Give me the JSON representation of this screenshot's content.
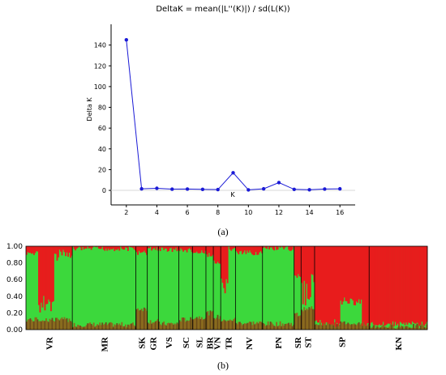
{
  "chart_data": [
    {
      "type": "line",
      "title": "DeltaK = mean(|L''(K)|) / sd(L(K))",
      "xlabel": "K",
      "ylabel": "Delta K",
      "x": [
        2,
        3,
        4,
        5,
        6,
        7,
        8,
        9,
        10,
        11,
        12,
        13,
        14,
        15,
        16
      ],
      "values": [
        145,
        1.5,
        2,
        1.2,
        1.3,
        1,
        0.8,
        17,
        0.5,
        1.5,
        7.5,
        1,
        0.6,
        1.3,
        1.5
      ],
      "xticks": [
        2,
        4,
        6,
        8,
        10,
        12,
        14,
        16
      ],
      "yticks": [
        0,
        20,
        40,
        60,
        80,
        100,
        120,
        140
      ],
      "ylim": [
        -14,
        160
      ],
      "xlim": [
        1,
        17
      ],
      "color": "#1a1ad6",
      "panel_label": "(a)"
    },
    {
      "type": "bar",
      "stacked": true,
      "yticks": [
        "0.00",
        "0.20",
        "0.40",
        "0.60",
        "0.80",
        "1.00"
      ],
      "ylim": [
        0,
        1
      ],
      "colors": {
        "red": "#e81c1c",
        "green": "#3cd83c",
        "olive": "#8a6a1e",
        "brown": "#6b4a1a"
      },
      "groups": [
        {
          "name": "VR",
          "share": 0.113,
          "red": 0.45,
          "olive": 0.12
        },
        {
          "name": "MR",
          "share": 0.155,
          "red": 0.03,
          "olive": 0.06
        },
        {
          "name": "SK",
          "share": 0.028,
          "red": 0.08,
          "olive": 0.25
        },
        {
          "name": "GR",
          "share": 0.027,
          "red": 0.03,
          "olive": 0.1
        },
        {
          "name": "VS",
          "share": 0.05,
          "red": 0.04,
          "olive": 0.07
        },
        {
          "name": "SC",
          "share": 0.033,
          "red": 0.05,
          "olive": 0.12
        },
        {
          "name": "SL",
          "share": 0.033,
          "red": 0.08,
          "olive": 0.15
        },
        {
          "name": "BR",
          "share": 0.018,
          "red": 0.1,
          "olive": 0.2
        },
        {
          "name": "VN",
          "share": 0.018,
          "red": 0.2,
          "olive": 0.15
        },
        {
          "name": "TR",
          "share": 0.036,
          "red": 0.3,
          "olive": 0.12
        },
        {
          "name": "NV",
          "share": 0.066,
          "red": 0.08,
          "olive": 0.08
        },
        {
          "name": "PN",
          "share": 0.077,
          "red": 0.03,
          "olive": 0.07
        },
        {
          "name": "SR",
          "share": 0.017,
          "red": 0.35,
          "olive": 0.18
        },
        {
          "name": "ST",
          "share": 0.033,
          "red": 0.4,
          "olive": 0.25
        },
        {
          "name": "SP",
          "share": 0.133,
          "red": 0.85,
          "olive": 0.08
        },
        {
          "name": "KN",
          "share": 0.142,
          "red": 0.93,
          "olive": 0.04
        }
      ],
      "panel_label": "(b)"
    }
  ]
}
